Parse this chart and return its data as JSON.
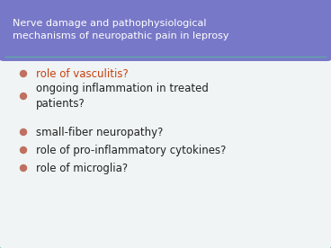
{
  "title": "Nerve damage and pathophysiological\nmechanisms of neuropathic pain in leprosy",
  "title_bg_color": "#7878c8",
  "title_text_color": "#ffffff",
  "slide_bg_color": "#f0f4f4",
  "body_bg_color": "#f0f4f4",
  "border_color": "#60a8a8",
  "bullet_items": [
    {
      "text": "role of vasculitis?",
      "color": "#c84010",
      "wrap": false
    },
    {
      "text": "ongoing inflammation in treated\npatients?",
      "color": "#222222",
      "wrap": true
    },
    {
      "text": "small-fiber neuropathy?",
      "color": "#222222",
      "wrap": false
    },
    {
      "text": "role of pro-inflammatory cytokines?",
      "color": "#222222",
      "wrap": false
    },
    {
      "text": "role of microglia?",
      "color": "#222222",
      "wrap": false
    }
  ],
  "bullet_color": "#c07060",
  "figsize": [
    3.68,
    2.76
  ],
  "dpi": 100
}
